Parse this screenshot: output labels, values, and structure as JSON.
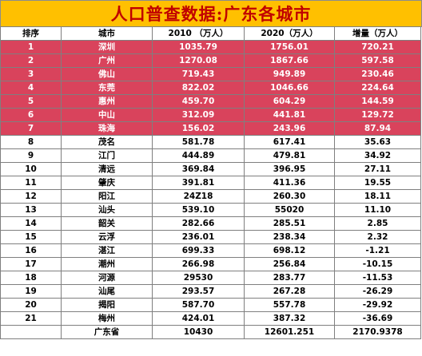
{
  "title": "人口普查数据:广东各城市",
  "columns": [
    "排序",
    "城市",
    "2010 （万人）",
    "2020（万人）",
    "增量（万人）"
  ],
  "highlight_color": "#d9435c",
  "title_bg": "#ffc000",
  "title_color": "#c00000",
  "rows": [
    {
      "rank": "1",
      "city": "深圳",
      "y2010": "1035.79",
      "y2020": "1756.01",
      "inc": "720.21",
      "highlight": true
    },
    {
      "rank": "2",
      "city": "广州",
      "y2010": "1270.08",
      "y2020": "1867.66",
      "inc": "597.58",
      "highlight": true
    },
    {
      "rank": "3",
      "city": "佛山",
      "y2010": "719.43",
      "y2020": "949.89",
      "inc": "230.46",
      "highlight": true
    },
    {
      "rank": "4",
      "city": "东莞",
      "y2010": "822.02",
      "y2020": "1046.66",
      "inc": "224.64",
      "highlight": true
    },
    {
      "rank": "5",
      "city": "惠州",
      "y2010": "459.70",
      "y2020": "604.29",
      "inc": "144.59",
      "highlight": true
    },
    {
      "rank": "6",
      "city": "中山",
      "y2010": "312.09",
      "y2020": "441.81",
      "inc": "129.72",
      "highlight": true
    },
    {
      "rank": "7",
      "city": "珠海",
      "y2010": "156.02",
      "y2020": "243.96",
      "inc": "87.94",
      "highlight": true
    },
    {
      "rank": "8",
      "city": "茂名",
      "y2010": "581.78",
      "y2020": "617.41",
      "inc": "35.63",
      "highlight": false
    },
    {
      "rank": "9",
      "city": "江门",
      "y2010": "444.89",
      "y2020": "479.81",
      "inc": "34.92",
      "highlight": false
    },
    {
      "rank": "10",
      "city": "清远",
      "y2010": "369.84",
      "y2020": "396.95",
      "inc": "27.11",
      "highlight": false
    },
    {
      "rank": "11",
      "city": "肇庆",
      "y2010": "391.81",
      "y2020": "411.36",
      "inc": "19.55",
      "highlight": false
    },
    {
      "rank": "12",
      "city": "阳江",
      "y2010": "24Z18",
      "y2020": "260.30",
      "inc": "18.11",
      "highlight": false
    },
    {
      "rank": "13",
      "city": "汕头",
      "y2010": "539.10",
      "y2020": "55020",
      "inc": "11.10",
      "highlight": false
    },
    {
      "rank": "14",
      "city": "韶关",
      "y2010": "282.66",
      "y2020": "285.51",
      "inc": "2.85",
      "highlight": false
    },
    {
      "rank": "15",
      "city": "云浮",
      "y2010": "236.01",
      "y2020": "238.34",
      "inc": "2.32",
      "highlight": false
    },
    {
      "rank": "16",
      "city": "湛江",
      "y2010": "699.33",
      "y2020": "698.12",
      "inc": "-1.21",
      "highlight": false
    },
    {
      "rank": "17",
      "city": "潮州",
      "y2010": "266.98",
      "y2020": "256.84",
      "inc": "-10.15",
      "highlight": false
    },
    {
      "rank": "18",
      "city": "河源",
      "y2010": "29530",
      "y2020": "283.77",
      "inc": "-11.53",
      "highlight": false
    },
    {
      "rank": "19",
      "city": "汕尾",
      "y2010": "293.57",
      "y2020": "267.28",
      "inc": "-26.29",
      "highlight": false
    },
    {
      "rank": "20",
      "city": "揭阳",
      "y2010": "587.70",
      "y2020": "557.78",
      "inc": "-29.92",
      "highlight": false
    },
    {
      "rank": "21",
      "city": "梅州",
      "y2010": "424.01",
      "y2020": "387.32",
      "inc": "-36.69",
      "highlight": false
    }
  ],
  "total": {
    "rank": "",
    "city": "广东省",
    "y2010": "10430",
    "y2020": "12601.251",
    "inc": "2170.9378"
  }
}
